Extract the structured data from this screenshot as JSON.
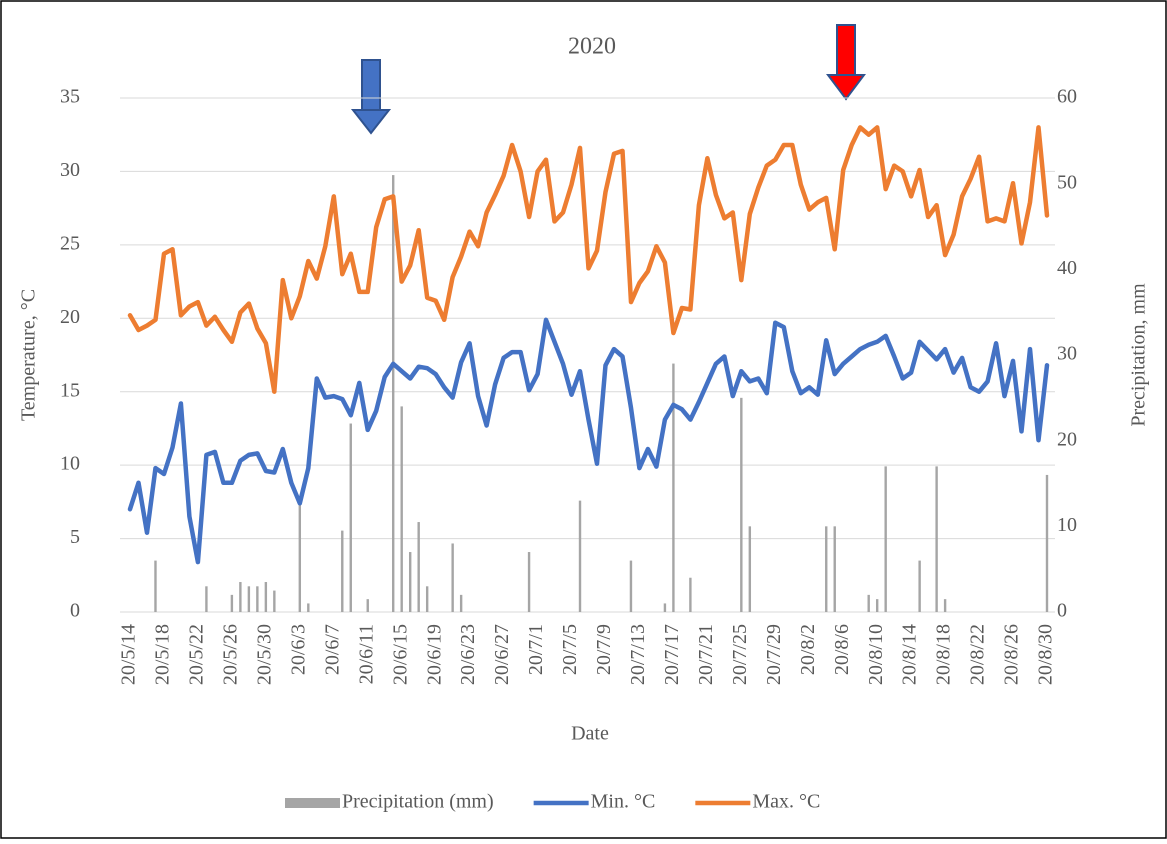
{
  "chart_data": {
    "type": "combo",
    "title": "2020",
    "x_label": "Date",
    "y_label": "Temperature, °C",
    "y2_label": "Precipitation, mm",
    "categories": [
      "20/5/14",
      null,
      null,
      null,
      "20/5/18",
      null,
      null,
      null,
      "20/5/22",
      null,
      null,
      null,
      "20/5/26",
      null,
      null,
      null,
      "20/5/30",
      null,
      null,
      null,
      "20/6/3",
      null,
      null,
      null,
      "20/6/7",
      null,
      null,
      null,
      "20/6/11",
      null,
      null,
      null,
      "20/6/15",
      null,
      null,
      null,
      "20/6/19",
      null,
      null,
      null,
      "20/6/23",
      null,
      null,
      null,
      "20/6/27",
      null,
      null,
      null,
      "20/7/1",
      null,
      null,
      null,
      "20/7/5",
      null,
      null,
      null,
      "20/7/9",
      null,
      null,
      null,
      "20/7/13",
      null,
      null,
      null,
      "20/7/17",
      null,
      null,
      null,
      "20/7/21",
      null,
      null,
      null,
      "20/7/25",
      null,
      null,
      null,
      "20/7/29",
      null,
      null,
      null,
      "20/8/2",
      null,
      null,
      null,
      "20/8/6",
      null,
      null,
      null,
      "20/8/10",
      null,
      null,
      null,
      "20/8/14",
      null,
      null,
      null,
      "20/8/18",
      null,
      null,
      null,
      "20/8/22",
      null,
      null,
      null,
      "20/8/26",
      null,
      null,
      null,
      "20/8/30"
    ],
    "series": [
      {
        "name": "Precipitation (mm)",
        "type": "bar",
        "axis": "y2",
        "color": "#a5a5a5",
        "values": [
          0,
          0,
          0,
          6,
          0,
          0,
          0,
          0,
          0,
          3,
          0,
          0,
          2,
          3.5,
          3,
          3,
          3.5,
          2.5,
          0,
          0,
          13,
          1,
          0,
          0,
          0,
          9.5,
          22,
          0,
          1.5,
          0,
          0,
          51,
          24,
          7,
          10.5,
          3,
          0,
          0,
          8,
          2,
          0,
          0,
          0,
          0,
          0,
          0,
          0,
          7,
          0,
          0,
          0,
          0,
          0,
          13,
          0,
          0,
          0,
          0,
          0,
          6,
          0,
          0,
          0,
          1,
          29,
          0,
          4,
          0,
          0,
          0,
          0,
          0,
          25,
          10,
          0,
          0,
          0,
          0,
          0,
          0,
          0,
          0,
          10,
          10,
          0,
          0,
          0,
          2,
          1.5,
          17,
          0,
          0,
          0,
          6,
          0,
          17,
          1.5,
          0,
          0,
          0,
          0,
          0,
          0,
          0,
          0,
          0,
          0,
          0,
          16
        ]
      },
      {
        "name": "Min. °C",
        "type": "line",
        "color": "#4472c4",
        "values": [
          7.0,
          8.8,
          5.4,
          9.8,
          9.4,
          11.2,
          14.2,
          6.5,
          3.4,
          10.7,
          10.9,
          8.8,
          8.8,
          10.3,
          10.7,
          10.8,
          9.6,
          9.5,
          11.1,
          8.8,
          7.4,
          9.8,
          15.9,
          14.6,
          14.7,
          14.5,
          13.4,
          15.6,
          12.4,
          13.7,
          16.0,
          16.9,
          16.4,
          15.9,
          16.7,
          16.6,
          16.2,
          15.3,
          14.6,
          17.0,
          18.3,
          14.7,
          12.7,
          15.5,
          17.3,
          17.7,
          17.7,
          15.1,
          16.2,
          19.9,
          18.4,
          16.9,
          14.8,
          16.4,
          13.1,
          10.1,
          16.8,
          17.9,
          17.4,
          13.9,
          9.8,
          11.1,
          9.9,
          13.1,
          14.1,
          13.8,
          13.1,
          14.3,
          15.6,
          16.9,
          17.4,
          14.7,
          16.4,
          15.7,
          15.9,
          14.9,
          19.7,
          19.4,
          16.4,
          14.9,
          15.3,
          14.8,
          18.5,
          16.2,
          16.9,
          17.4,
          17.9,
          18.2,
          18.4,
          18.8,
          17.4,
          15.9,
          16.3,
          18.4,
          17.8,
          17.2,
          17.9,
          16.3,
          17.3,
          15.3,
          15.0,
          15.7,
          18.3,
          14.7,
          17.1,
          12.3,
          17.9,
          11.7,
          16.8
        ]
      },
      {
        "name": "Max. °C",
        "type": "line",
        "color": "#ed7d31",
        "values": [
          20.2,
          19.2,
          19.5,
          19.9,
          24.4,
          24.7,
          20.2,
          20.8,
          21.1,
          19.5,
          20.1,
          19.2,
          18.4,
          20.4,
          21.0,
          19.3,
          18.3,
          15.0,
          22.6,
          20.0,
          21.5,
          23.9,
          22.7,
          24.9,
          28.3,
          23.0,
          24.4,
          21.8,
          21.8,
          26.2,
          28.1,
          28.3,
          22.5,
          23.6,
          26.0,
          21.4,
          21.2,
          19.9,
          22.8,
          24.2,
          25.9,
          24.9,
          27.2,
          28.4,
          29.7,
          31.8,
          30.0,
          26.9,
          30.0,
          30.8,
          26.6,
          27.2,
          29.1,
          31.6,
          23.4,
          24.6,
          28.6,
          31.2,
          31.4,
          21.1,
          22.4,
          23.2,
          24.9,
          23.8,
          19.0,
          20.7,
          20.6,
          27.7,
          30.9,
          28.4,
          26.8,
          27.2,
          22.6,
          27.1,
          28.9,
          30.4,
          30.8,
          31.8,
          31.8,
          29.1,
          27.4,
          27.9,
          28.2,
          24.7,
          30.1,
          31.8,
          33.0,
          32.5,
          33.0,
          28.8,
          30.4,
          30.0,
          28.3,
          30.1,
          26.9,
          27.7,
          24.3,
          25.7,
          28.3,
          29.5,
          31.0,
          26.6,
          26.8,
          26.6,
          29.2,
          25.1,
          27.9,
          33.0,
          27.0
        ]
      }
    ],
    "ylim": [
      0,
      35
    ],
    "yticks": [
      0,
      5,
      10,
      15,
      20,
      25,
      30,
      35
    ],
    "y2lim": [
      0,
      60
    ],
    "y2ticks": [
      0,
      10,
      20,
      30,
      40,
      50,
      60
    ],
    "grid": true,
    "legend": "bottom"
  }
}
